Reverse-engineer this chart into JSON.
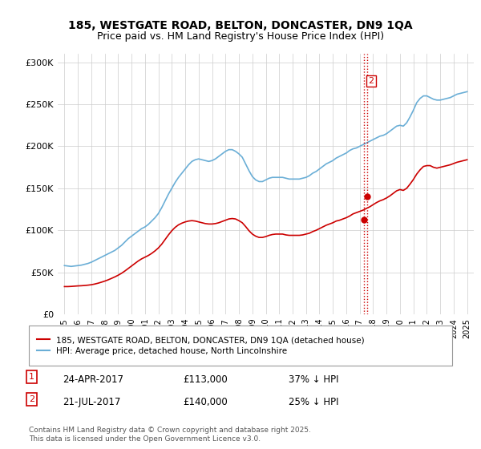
{
  "title_line1": "185, WESTGATE ROAD, BELTON, DONCASTER, DN9 1QA",
  "title_line2": "Price paid vs. HM Land Registry's House Price Index (HPI)",
  "ylabel": "",
  "ylim": [
    0,
    310000
  ],
  "yticks": [
    0,
    50000,
    100000,
    150000,
    200000,
    250000,
    300000
  ],
  "ytick_labels": [
    "£0",
    "£50K",
    "£100K",
    "£150K",
    "£200K",
    "£250K",
    "£300K"
  ],
  "xlim_start": 1994.5,
  "xlim_end": 2025.5,
  "xticks": [
    1995,
    1996,
    1997,
    1998,
    1999,
    2000,
    2001,
    2002,
    2003,
    2004,
    2005,
    2006,
    2007,
    2008,
    2009,
    2010,
    2011,
    2012,
    2013,
    2014,
    2015,
    2016,
    2017,
    2018,
    2019,
    2020,
    2021,
    2022,
    2023,
    2024,
    2025
  ],
  "hpi_color": "#6aaed6",
  "price_color": "#cc0000",
  "vline_color": "#cc0000",
  "vline_style": ":",
  "transaction1": {
    "date_num": 2017.31,
    "price": 113000,
    "label": "1"
  },
  "transaction2": {
    "date_num": 2017.55,
    "price": 140000,
    "label": "2"
  },
  "legend_label1": "185, WESTGATE ROAD, BELTON, DONCASTER, DN9 1QA (detached house)",
  "legend_label2": "HPI: Average price, detached house, North Lincolnshire",
  "note1_label": "1",
  "note1_date": "24-APR-2017",
  "note1_price": "£113,000",
  "note1_hpi": "37% ↓ HPI",
  "note2_label": "2",
  "note2_date": "21-JUL-2017",
  "note2_price": "£140,000",
  "note2_hpi": "25% ↓ HPI",
  "footer": "Contains HM Land Registry data © Crown copyright and database right 2025.\nThis data is licensed under the Open Government Licence v3.0.",
  "background_color": "#ffffff",
  "grid_color": "#cccccc",
  "hpi_data_x": [
    1995.0,
    1995.25,
    1995.5,
    1995.75,
    1996.0,
    1996.25,
    1996.5,
    1996.75,
    1997.0,
    1997.25,
    1997.5,
    1997.75,
    1998.0,
    1998.25,
    1998.5,
    1998.75,
    1999.0,
    1999.25,
    1999.5,
    1999.75,
    2000.0,
    2000.25,
    2000.5,
    2000.75,
    2001.0,
    2001.25,
    2001.5,
    2001.75,
    2002.0,
    2002.25,
    2002.5,
    2002.75,
    2003.0,
    2003.25,
    2003.5,
    2003.75,
    2004.0,
    2004.25,
    2004.5,
    2004.75,
    2005.0,
    2005.25,
    2005.5,
    2005.75,
    2006.0,
    2006.25,
    2006.5,
    2006.75,
    2007.0,
    2007.25,
    2007.5,
    2007.75,
    2008.0,
    2008.25,
    2008.5,
    2008.75,
    2009.0,
    2009.25,
    2009.5,
    2009.75,
    2010.0,
    2010.25,
    2010.5,
    2010.75,
    2011.0,
    2011.25,
    2011.5,
    2011.75,
    2012.0,
    2012.25,
    2012.5,
    2012.75,
    2013.0,
    2013.25,
    2013.5,
    2013.75,
    2014.0,
    2014.25,
    2014.5,
    2014.75,
    2015.0,
    2015.25,
    2015.5,
    2015.75,
    2016.0,
    2016.25,
    2016.5,
    2016.75,
    2017.0,
    2017.25,
    2017.5,
    2017.75,
    2018.0,
    2018.25,
    2018.5,
    2018.75,
    2019.0,
    2019.25,
    2019.5,
    2019.75,
    2020.0,
    2020.25,
    2020.5,
    2020.75,
    2021.0,
    2021.25,
    2021.5,
    2021.75,
    2022.0,
    2022.25,
    2022.5,
    2022.75,
    2023.0,
    2023.25,
    2023.5,
    2023.75,
    2024.0,
    2024.25,
    2024.5,
    2024.75,
    2025.0
  ],
  "hpi_data_y": [
    58000,
    57500,
    57000,
    57500,
    58000,
    58500,
    59500,
    60500,
    62000,
    64000,
    66000,
    68000,
    70000,
    72000,
    74000,
    76000,
    79000,
    82000,
    86000,
    90000,
    93000,
    96000,
    99000,
    102000,
    104000,
    107000,
    111000,
    115000,
    120000,
    127000,
    135000,
    143000,
    150000,
    157000,
    163000,
    168000,
    173000,
    178000,
    182000,
    184000,
    185000,
    184000,
    183000,
    182000,
    183000,
    185000,
    188000,
    191000,
    194000,
    196000,
    196000,
    194000,
    191000,
    187000,
    179000,
    171000,
    164000,
    160000,
    158000,
    158000,
    160000,
    162000,
    163000,
    163000,
    163000,
    163000,
    162000,
    161000,
    161000,
    161000,
    161000,
    162000,
    163000,
    165000,
    168000,
    170000,
    173000,
    176000,
    179000,
    181000,
    183000,
    186000,
    188000,
    190000,
    192000,
    195000,
    197000,
    198000,
    200000,
    202000,
    204000,
    206000,
    208000,
    210000,
    212000,
    213000,
    215000,
    218000,
    221000,
    224000,
    225000,
    224000,
    228000,
    235000,
    243000,
    252000,
    257000,
    260000,
    260000,
    258000,
    256000,
    255000,
    255000,
    256000,
    257000,
    258000,
    260000,
    262000,
    263000,
    264000,
    265000
  ],
  "price_data_x": [
    1995.0,
    1995.25,
    1995.5,
    1995.75,
    1996.0,
    1996.25,
    1996.5,
    1996.75,
    1997.0,
    1997.25,
    1997.5,
    1997.75,
    1998.0,
    1998.25,
    1998.5,
    1998.75,
    1999.0,
    1999.25,
    1999.5,
    1999.75,
    2000.0,
    2000.25,
    2000.5,
    2000.75,
    2001.0,
    2001.25,
    2001.5,
    2001.75,
    2002.0,
    2002.25,
    2002.5,
    2002.75,
    2003.0,
    2003.25,
    2003.5,
    2003.75,
    2004.0,
    2004.25,
    2004.5,
    2004.75,
    2005.0,
    2005.25,
    2005.5,
    2005.75,
    2006.0,
    2006.25,
    2006.5,
    2006.75,
    2007.0,
    2007.25,
    2007.5,
    2007.75,
    2008.0,
    2008.25,
    2008.5,
    2008.75,
    2009.0,
    2009.25,
    2009.5,
    2009.75,
    2010.0,
    2010.25,
    2010.5,
    2010.75,
    2011.0,
    2011.25,
    2011.5,
    2011.75,
    2012.0,
    2012.25,
    2012.5,
    2012.75,
    2013.0,
    2013.25,
    2013.5,
    2013.75,
    2014.0,
    2014.25,
    2014.5,
    2014.75,
    2015.0,
    2015.25,
    2015.5,
    2015.75,
    2016.0,
    2016.25,
    2016.5,
    2016.75,
    2017.0,
    2017.25,
    2017.5,
    2017.75,
    2018.0,
    2018.25,
    2018.5,
    2018.75,
    2019.0,
    2019.25,
    2019.5,
    2019.75,
    2020.0,
    2020.25,
    2020.5,
    2020.75,
    2021.0,
    2021.25,
    2021.5,
    2021.75,
    2022.0,
    2022.25,
    2022.5,
    2022.75,
    2023.0,
    2023.25,
    2023.5,
    2023.75,
    2024.0,
    2024.25,
    2024.5,
    2024.75,
    2025.0
  ],
  "price_data_y": [
    33000,
    33000,
    33200,
    33500,
    33800,
    34000,
    34300,
    34700,
    35200,
    36000,
    37000,
    38200,
    39500,
    41000,
    42700,
    44500,
    46500,
    48800,
    51500,
    54500,
    57500,
    60500,
    63500,
    66000,
    68000,
    70000,
    72500,
    75500,
    79000,
    83500,
    89000,
    94500,
    99500,
    103500,
    106500,
    108500,
    110000,
    111000,
    111500,
    111000,
    110000,
    109000,
    108000,
    107500,
    107500,
    108000,
    109000,
    110500,
    112000,
    113500,
    114000,
    113500,
    111500,
    109000,
    104500,
    99500,
    95500,
    93000,
    91500,
    91500,
    92500,
    94000,
    95000,
    95500,
    95500,
    95500,
    94500,
    94000,
    94000,
    94000,
    94000,
    94500,
    95500,
    96500,
    98500,
    100000,
    102000,
    104000,
    106000,
    107500,
    109000,
    111000,
    112000,
    113500,
    115000,
    117000,
    119500,
    121000,
    122500,
    124000,
    126000,
    128000,
    130500,
    133000,
    135000,
    136500,
    138500,
    141000,
    144000,
    147000,
    148500,
    147500,
    150000,
    155000,
    160500,
    167000,
    172000,
    176000,
    177000,
    177000,
    175000,
    174000,
    175000,
    176000,
    177000,
    178000,
    179500,
    181000,
    182000,
    183000,
    184000
  ]
}
